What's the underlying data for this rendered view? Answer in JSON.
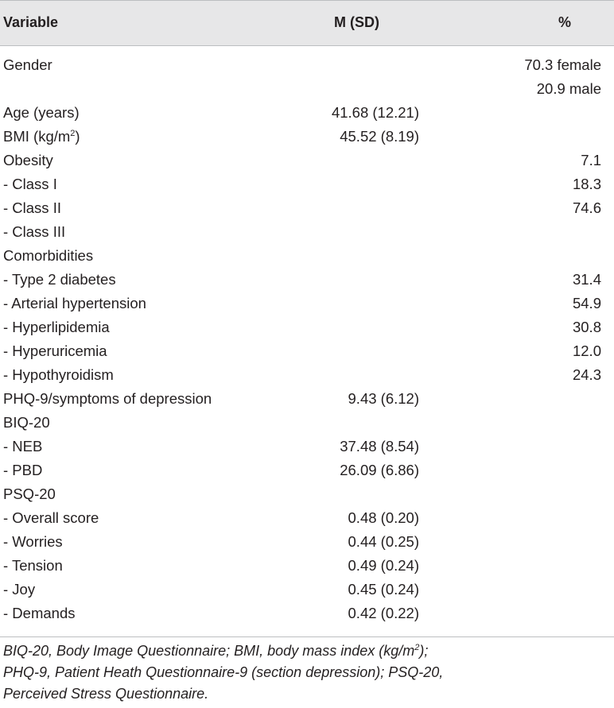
{
  "header": {
    "variable": "Variable",
    "msd": "M (SD)",
    "percent": "%"
  },
  "rows": [
    {
      "variable": "Gender",
      "msd": "",
      "percent": "70.3 female"
    },
    {
      "variable": "",
      "msd": "",
      "percent": "20.9 male"
    },
    {
      "variable": "Age (years)",
      "msd": "41.68 (12.21)",
      "percent": ""
    },
    {
      "variable": "BMI (kg/m",
      "sup": "2",
      "variable_tail": ")",
      "msd": "45.52 (8.19)",
      "percent": ""
    },
    {
      "variable": "Obesity",
      "msd": "",
      "percent": "7.1"
    },
    {
      "variable": "- Class I",
      "msd": "",
      "percent": "18.3"
    },
    {
      "variable": "- Class II",
      "msd": "",
      "percent": "74.6"
    },
    {
      "variable": "- Class III",
      "msd": "",
      "percent": ""
    },
    {
      "variable": "Comorbidities",
      "msd": "",
      "percent": ""
    },
    {
      "variable": "- Type 2 diabetes",
      "msd": "",
      "percent": "31.4"
    },
    {
      "variable": "- Arterial hypertension",
      "msd": "",
      "percent": "54.9"
    },
    {
      "variable": "- Hyperlipidemia",
      "msd": "",
      "percent": "30.8"
    },
    {
      "variable": "- Hyperuricemia",
      "msd": "",
      "percent": "12.0"
    },
    {
      "variable": "- Hypothyroidism",
      "msd": "",
      "percent": "24.3"
    },
    {
      "variable": "PHQ-9/symptoms of depression",
      "msd": "9.43 (6.12)",
      "percent": ""
    },
    {
      "variable": "BIQ-20",
      "msd": "",
      "percent": ""
    },
    {
      "variable": "- NEB",
      "msd": "37.48 (8.54)",
      "percent": ""
    },
    {
      "variable": "- PBD",
      "msd": "26.09 (6.86)",
      "percent": ""
    },
    {
      "variable": "PSQ-20",
      "msd": "",
      "percent": ""
    },
    {
      "variable": "- Overall score",
      "msd": "0.48 (0.20)",
      "percent": ""
    },
    {
      "variable": "- Worries",
      "msd": "0.44 (0.25)",
      "percent": ""
    },
    {
      "variable": "- Tension",
      "msd": "0.49 (0.24)",
      "percent": ""
    },
    {
      "variable": "- Joy",
      "msd": "0.45 (0.24)",
      "percent": ""
    },
    {
      "variable": "- Demands",
      "msd": "0.42 (0.22)",
      "percent": ""
    }
  ],
  "footnote": {
    "line1a": "BIQ-20, Body Image Questionnaire; BMI, body mass index (kg/m",
    "line1sup": "2",
    "line1b": ");",
    "line2": "PHQ-9, Patient Heath Questionnaire-9 (section depression); PSQ-20,",
    "line3": "Perceived Stress Questionnaire."
  }
}
